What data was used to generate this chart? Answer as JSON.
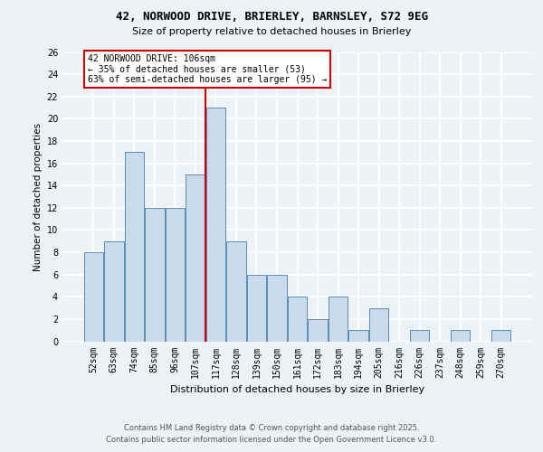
{
  "title_line1": "42, NORWOOD DRIVE, BRIERLEY, BARNSLEY, S72 9EG",
  "title_line2": "Size of property relative to detached houses in Brierley",
  "xlabel": "Distribution of detached houses by size in Brierley",
  "ylabel": "Number of detached properties",
  "categories": [
    "52sqm",
    "63sqm",
    "74sqm",
    "85sqm",
    "96sqm",
    "107sqm",
    "117sqm",
    "128sqm",
    "139sqm",
    "150sqm",
    "161sqm",
    "172sqm",
    "183sqm",
    "194sqm",
    "205sqm",
    "216sqm",
    "226sqm",
    "237sqm",
    "248sqm",
    "259sqm",
    "270sqm"
  ],
  "values": [
    8,
    9,
    17,
    12,
    12,
    15,
    21,
    9,
    6,
    6,
    4,
    2,
    4,
    1,
    3,
    0,
    1,
    0,
    1,
    0,
    1
  ],
  "bar_color": "#c9daea",
  "bar_edge_color": "#5b8db8",
  "vline_x": 5.5,
  "vline_color": "#cc0000",
  "annotation_text": "42 NORWOOD DRIVE: 106sqm\n← 35% of detached houses are smaller (53)\n63% of semi-detached houses are larger (95) →",
  "annotation_box_color": "#ffffff",
  "annotation_box_edge_color": "#cc0000",
  "ylim": [
    0,
    26
  ],
  "yticks": [
    0,
    2,
    4,
    6,
    8,
    10,
    12,
    14,
    16,
    18,
    20,
    22,
    24,
    26
  ],
  "footer_text": "Contains HM Land Registry data © Crown copyright and database right 2025.\nContains public sector information licensed under the Open Government Licence v3.0.",
  "bg_color": "#edf2f7",
  "grid_color": "#ffffff",
  "title_fontsize": 9,
  "subtitle_fontsize": 8,
  "xlabel_fontsize": 8,
  "ylabel_fontsize": 7.5,
  "tick_fontsize": 7,
  "ann_fontsize": 7,
  "footer_fontsize": 6
}
